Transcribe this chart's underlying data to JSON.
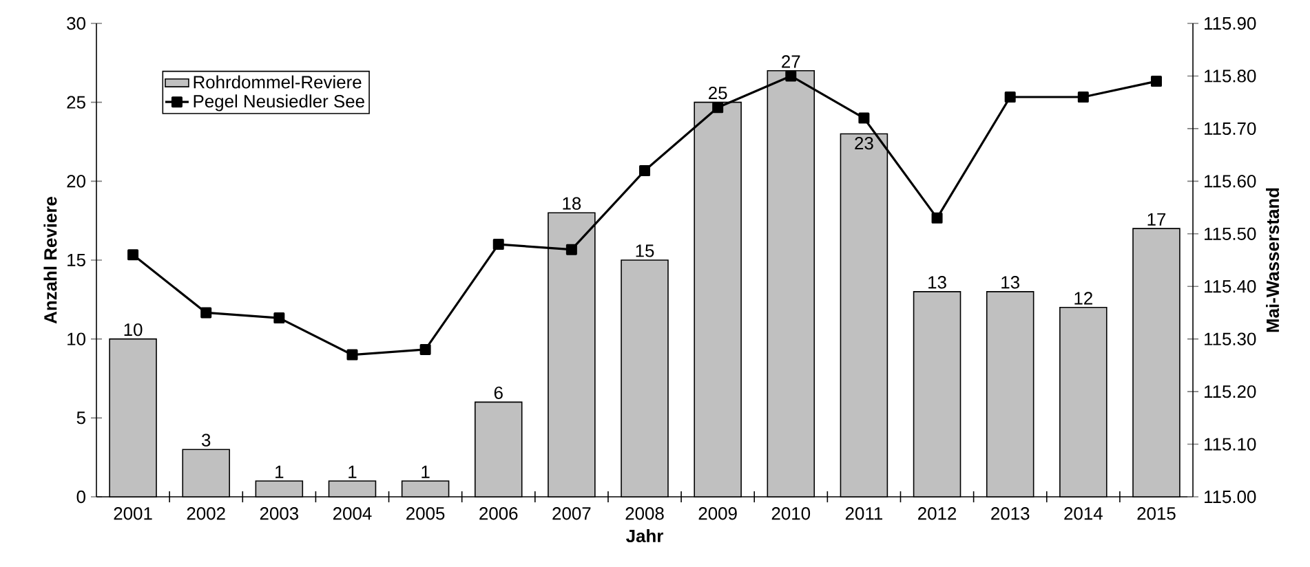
{
  "chart_data": {
    "type": "bar",
    "xlabel": "Jahr",
    "ylabel": "Anzahl Reviere",
    "y2label": "Mai-Wasserstand",
    "legend": "top left",
    "categories": [
      "2001",
      "2002",
      "2003",
      "2004",
      "2005",
      "2006",
      "2007",
      "2008",
      "2009",
      "2010",
      "2011",
      "2012",
      "2013",
      "2014",
      "2015"
    ],
    "series": [
      {
        "name": "Rohrdommel-Reviere",
        "type": "bar",
        "color": "#c0c0c0",
        "values": [
          10,
          3,
          1,
          1,
          1,
          6,
          18,
          15,
          25,
          27,
          23,
          13,
          13,
          12,
          17
        ],
        "value_labels": [
          "10",
          "3",
          "1",
          "1",
          "1",
          "6",
          "18",
          "15",
          "25",
          "27",
          "23",
          "13",
          "13",
          "12",
          "17"
        ]
      },
      {
        "name": "Pegel Neusiedler See",
        "type": "line",
        "axis": "y2",
        "color": "#000000",
        "marker": "square",
        "line_style": "solid",
        "values": [
          115.46,
          115.35,
          115.34,
          115.27,
          115.28,
          115.48,
          115.47,
          115.62,
          115.74,
          115.8,
          115.72,
          115.53,
          115.76,
          115.76,
          115.79
        ]
      }
    ],
    "ylim": [
      0,
      30
    ],
    "yticks": [
      0,
      5,
      10,
      15,
      20,
      25,
      30
    ],
    "y2lim": [
      115.0,
      115.9
    ],
    "y2ticks": [
      {
        "value": 115.0,
        "label": "115.00"
      },
      {
        "value": 115.1,
        "label": "115.10"
      },
      {
        "value": 115.2,
        "label": "115.20"
      },
      {
        "value": 115.3,
        "label": "115.30"
      },
      {
        "value": 115.4,
        "label": "115.40"
      },
      {
        "value": 115.5,
        "label": "115.50"
      },
      {
        "value": 115.6,
        "label": "115.60"
      },
      {
        "value": 115.7,
        "label": "115.70"
      },
      {
        "value": 115.8,
        "label": "115.80"
      },
      {
        "value": 115.9,
        "label": "115.90"
      }
    ]
  }
}
